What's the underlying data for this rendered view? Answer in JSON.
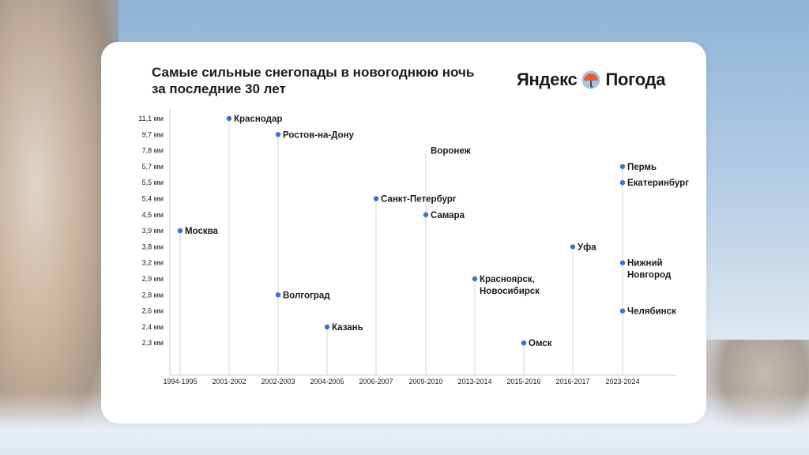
{
  "background": {
    "description_colors": {
      "sky": "#a9c4df",
      "snow": "#e8eff6"
    }
  },
  "title_lines": [
    "Самые сильные снегопады в новогоднюю ночь",
    "за последние 30 лет"
  ],
  "logo": {
    "left": "Яндекс",
    "right": "Погода",
    "icon": "umbrella-icon"
  },
  "colors": {
    "point": "#3b6fe0",
    "stem": "#d6d6d6",
    "text": "#1b1b1b"
  },
  "chart_data": {
    "type": "scatter",
    "title": "Самые сильные снегопады в новогоднюю ночь за последние 30 лет",
    "y_ticks": [
      "11,1 мм",
      "9,7 мм",
      "7,8 мм",
      "5,7 мм",
      "5,5 мм",
      "5,4 мм",
      "4,5 мм",
      "3,9 мм",
      "3,8 мм",
      "3,2 мм",
      "2,9 мм",
      "2,8 мм",
      "2,6 мм",
      "2,4 мм",
      "2,3 мм"
    ],
    "categories": [
      "1994-1995",
      "2001-2002",
      "2002-2003",
      "2004-2005",
      "2006-2007",
      "2009-2010",
      "2013-2014",
      "2015-2016",
      "2016-2017",
      "2023-2024"
    ],
    "points": [
      {
        "period": "1994-1995",
        "value": "3,9 мм",
        "lines": [
          "Москва"
        ]
      },
      {
        "period": "2001-2002",
        "value": "11,1 мм",
        "lines": [
          "Краснодар"
        ]
      },
      {
        "period": "2002-2003",
        "value": "9,7 мм",
        "lines": [
          "Ростов-на-Дону"
        ]
      },
      {
        "period": "2002-2003",
        "value": "2,8 мм",
        "lines": [
          "Волгоград"
        ]
      },
      {
        "period": "2004-2005",
        "value": "2,4 мм",
        "lines": [
          "Казань"
        ]
      },
      {
        "period": "2006-2007",
        "value": "5,4 мм",
        "lines": [
          "Санкт-Петербург"
        ]
      },
      {
        "period": "2009-2010",
        "value": "7,8 мм",
        "lines": [
          "Воронеж"
        ],
        "marker": false
      },
      {
        "period": "2009-2010",
        "value": "4,5 мм",
        "lines": [
          "Самара"
        ]
      },
      {
        "period": "2013-2014",
        "value": "2,9 мм",
        "lines": [
          "Красноярск,",
          "Новосибирск"
        ]
      },
      {
        "period": "2015-2016",
        "value": "2,3 мм",
        "lines": [
          "Омск"
        ]
      },
      {
        "period": "2016-2017",
        "value": "3,8 мм",
        "lines": [
          "Уфа"
        ]
      },
      {
        "period": "2023-2024",
        "value": "5,7 мм",
        "lines": [
          "Пермь"
        ]
      },
      {
        "period": "2023-2024",
        "value": "5,5 мм",
        "lines": [
          "Екатеринбург"
        ]
      },
      {
        "period": "2023-2024",
        "value": "3,2 мм",
        "lines": [
          "Нижний",
          "Новгород"
        ]
      },
      {
        "period": "2023-2024",
        "value": "2,6 мм",
        "lines": [
          "Челябинск"
        ]
      }
    ]
  }
}
